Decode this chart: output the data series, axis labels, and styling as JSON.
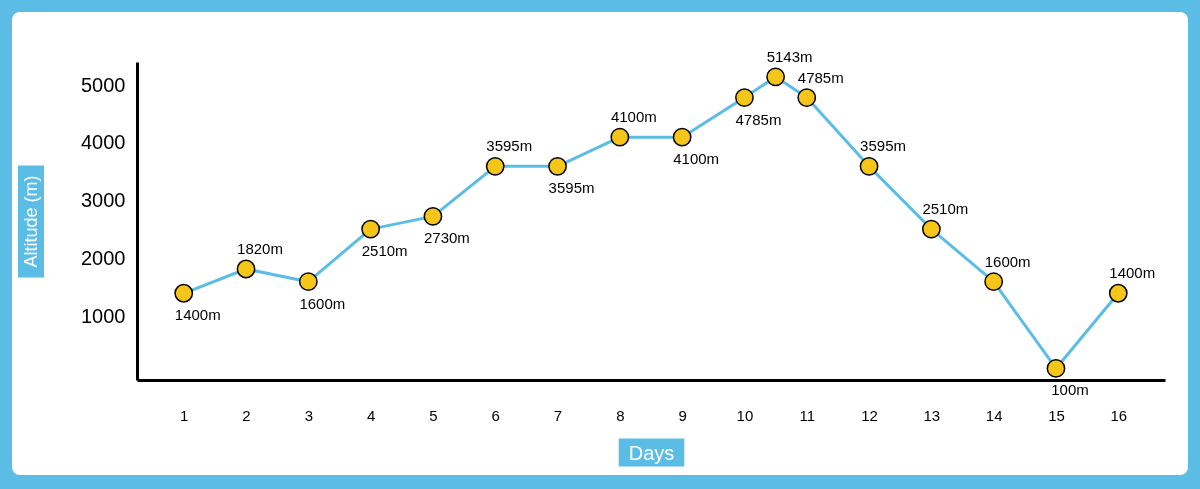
{
  "chart_data": {
    "type": "line",
    "xlabel": "Days",
    "ylabel": "Altitude (m)",
    "xlim": [
      0.25,
      16.75
    ],
    "xticks": [
      1,
      2,
      3,
      4,
      5,
      6,
      7,
      8,
      9,
      10,
      11,
      12,
      13,
      14,
      15,
      16
    ],
    "ylim": [
      -100,
      5400
    ],
    "yticks": [
      1000,
      2000,
      3000,
      4000,
      5000
    ],
    "grid": false,
    "marker": "circle",
    "line_style": "solid",
    "series": [
      {
        "color": "#5bbde6",
        "x": [
          1,
          2,
          3,
          4,
          5,
          6,
          7,
          8,
          9,
          10,
          10.5,
          11,
          12,
          13,
          14,
          15,
          16
        ],
        "values": [
          1400,
          1820,
          1600,
          2510,
          2730,
          3595,
          3595,
          4100,
          4100,
          4785,
          5143,
          4785,
          3595,
          2510,
          1600,
          100,
          1400
        ],
        "value_labels": [
          "1400m",
          "1820m",
          "1600m",
          "2510m",
          "2730m",
          "3595m",
          "3595m",
          "4100m",
          "4100m",
          "4785m",
          "5143m",
          "4785m",
          "3595m",
          "2510m",
          "1600m",
          "100m",
          "1400m"
        ]
      }
    ]
  }
}
